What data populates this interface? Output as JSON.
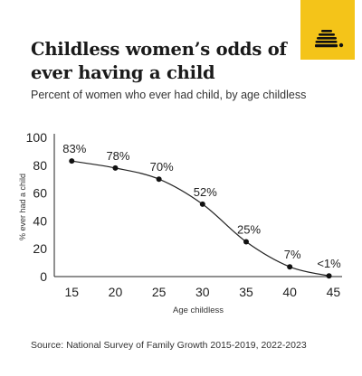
{
  "header": {
    "title": "Childless women’s odds of ever having a child",
    "subtitle": "Percent of women who ever had child, by age childless"
  },
  "logo": {
    "icon": "beehive-icon",
    "background": "#f4c419",
    "foreground": "#111111"
  },
  "footer": {
    "source": "Source: National Survey of Family Growth 2015-2019, 2022-2023"
  },
  "chart_data": {
    "type": "line",
    "title": "Childless women’s odds of ever having a child",
    "subtitle": "Percent of women who ever had child, by age childless",
    "xlabel": "Age childless",
    "ylabel": "% ever had a child",
    "x": [
      15,
      20,
      25,
      30,
      35,
      40,
      44.5
    ],
    "y": [
      83,
      78,
      70,
      52,
      25,
      7,
      0.5
    ],
    "point_labels": [
      "83%",
      "78%",
      "70%",
      "52%",
      "25%",
      "7%",
      "<1%"
    ],
    "x_ticks": [
      15,
      20,
      25,
      30,
      35,
      40,
      45
    ],
    "y_ticks": [
      0,
      20,
      40,
      60,
      80,
      100
    ],
    "xlim": [
      13,
      46
    ],
    "ylim": [
      0,
      100
    ],
    "grid": false,
    "line_color": "#222222",
    "marker_color": "#111111"
  }
}
